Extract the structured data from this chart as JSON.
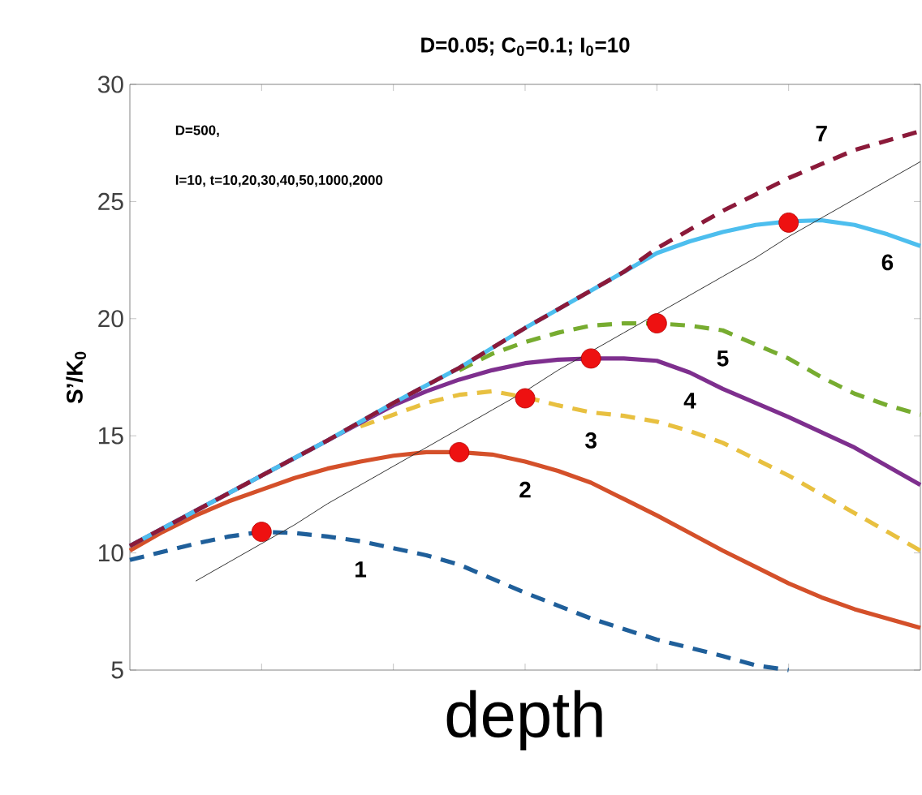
{
  "chart_data": {
    "type": "line",
    "title": "D=0.05; C$_{0}$=0.1; I$_{0}$=10",
    "xlabel": "depth",
    "ylabel": "S’/K$_{0}$",
    "categories": [
      null,
      null,
      null,
      null,
      null,
      null,
      null,
      null,
      null,
      null,
      null,
      null,
      null,
      null,
      null,
      null,
      null,
      null,
      null,
      null,
      null,
      null,
      null,
      null,
      null
    ],
    "ylim": [
      5,
      30
    ],
    "yticks": [
      5,
      10,
      15,
      20,
      25,
      30
    ],
    "grid": false,
    "legend": false,
    "series": [
      {
        "name": "1",
        "color": "#1f5f9a",
        "line_style": "dashed",
        "values": [
          9.7,
          10.05,
          10.4,
          10.7,
          10.9,
          10.85,
          10.7,
          10.5,
          10.2,
          9.9,
          9.5,
          8.9,
          8.3,
          7.75,
          7.2,
          6.75,
          6.3,
          5.95,
          5.6,
          5.2,
          5.0,
          null,
          null,
          null,
          null
        ]
      },
      {
        "name": "2",
        "color": "#d4502a",
        "line_style": "solid",
        "values": [
          10.1,
          10.9,
          11.6,
          12.2,
          12.7,
          13.2,
          13.6,
          13.9,
          14.15,
          14.3,
          14.3,
          14.2,
          13.9,
          13.5,
          13.0,
          12.3,
          11.6,
          10.85,
          10.1,
          9.4,
          8.7,
          8.1,
          7.6,
          7.2,
          6.8
        ]
      },
      {
        "name": "3",
        "color": "#e8c040",
        "line_style": "dashed",
        "values": [
          null,
          null,
          null,
          null,
          null,
          null,
          null,
          15.4,
          15.9,
          16.4,
          16.75,
          16.9,
          16.65,
          16.3,
          16.0,
          15.85,
          15.6,
          15.2,
          14.7,
          14.0,
          13.3,
          12.5,
          11.7,
          10.9,
          10.1
        ]
      },
      {
        "name": "4",
        "color": "#7e2f8e",
        "line_style": "solid",
        "values": [
          10.3,
          11.05,
          11.8,
          12.55,
          13.3,
          14.05,
          14.8,
          15.55,
          16.3,
          16.9,
          17.4,
          17.8,
          18.1,
          18.25,
          18.3,
          18.3,
          18.2,
          17.7,
          17.0,
          16.4,
          15.8,
          15.15,
          14.5,
          13.7,
          12.9
        ]
      },
      {
        "name": "5",
        "color": "#77ac30",
        "line_style": "dashed",
        "values": [
          null,
          null,
          null,
          null,
          null,
          null,
          null,
          null,
          null,
          null,
          17.8,
          18.5,
          19.0,
          19.4,
          19.7,
          19.8,
          19.8,
          19.7,
          19.5,
          18.9,
          18.3,
          17.5,
          16.8,
          16.3,
          15.9
        ]
      },
      {
        "name": "6",
        "color": "#4dbeee",
        "line_style": "solid",
        "values": [
          10.3,
          11.05,
          11.8,
          12.55,
          13.3,
          14.05,
          14.8,
          15.6,
          16.4,
          17.15,
          17.9,
          18.75,
          19.6,
          20.4,
          21.2,
          22.0,
          22.8,
          23.3,
          23.7,
          24.0,
          24.15,
          24.2,
          24.0,
          23.6,
          23.1
        ]
      },
      {
        "name": "7",
        "color": "#8b1a3a",
        "line_style": "dashed",
        "values": [
          10.3,
          11.05,
          11.8,
          12.55,
          13.3,
          14.05,
          14.8,
          15.6,
          16.4,
          17.15,
          17.9,
          18.75,
          19.6,
          20.4,
          21.2,
          22.0,
          23.0,
          23.8,
          24.6,
          25.3,
          26.0,
          26.6,
          27.2,
          27.6,
          28.0
        ]
      },
      {
        "color": "#333333",
        "line_style": "solid",
        "values": [
          null,
          null,
          8.8,
          9.6,
          10.4,
          11.2,
          12.1,
          12.9,
          13.7,
          14.5,
          15.3,
          16.1,
          16.9,
          17.8,
          18.6,
          19.4,
          20.2,
          21.0,
          21.8,
          22.6,
          23.5,
          24.3,
          25.1,
          25.9,
          26.7
        ]
      },
      {
        "type": "scatter",
        "marker": "circle",
        "color": "#ee1111",
        "values": [
          null,
          null,
          null,
          null,
          10.9,
          null,
          null,
          null,
          null,
          null,
          14.3,
          null,
          16.6,
          null,
          18.3,
          null,
          19.8,
          null,
          null,
          null,
          24.1,
          null,
          null,
          null,
          null
        ]
      }
    ],
    "annotations": [
      "D=500,",
      "I=10, t=10,20,30,40,50,1000,2000"
    ]
  }
}
